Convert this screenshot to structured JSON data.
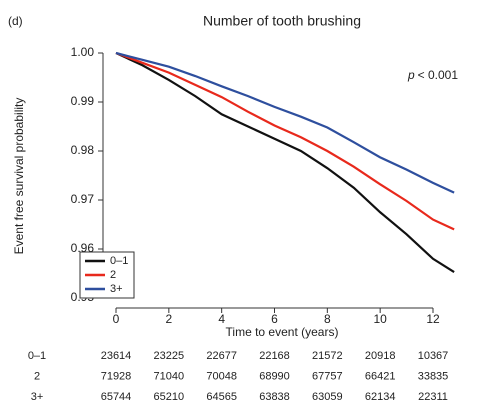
{
  "chart_data": {
    "type": "line",
    "panel_label": "(d)",
    "title": "Number of tooth brushing",
    "xlabel": "Time to event (years)",
    "ylabel": "Event free survival probability",
    "p_symbol": "p",
    "p_value": "< 0.001",
    "x": [
      0,
      1,
      2,
      3,
      4,
      5,
      6,
      7,
      8,
      9,
      10,
      11,
      12,
      12.8
    ],
    "series": [
      {
        "name": "0–1",
        "color": "#111111",
        "values": [
          1.0,
          0.9975,
          0.9945,
          0.9912,
          0.9875,
          0.985,
          0.9825,
          0.98,
          0.9765,
          0.9725,
          0.9675,
          0.963,
          0.958,
          0.9553
        ]
      },
      {
        "name": "2",
        "color": "#e8291c",
        "values": [
          1.0,
          0.998,
          0.996,
          0.9935,
          0.991,
          0.988,
          0.9852,
          0.9828,
          0.98,
          0.9768,
          0.9732,
          0.9698,
          0.966,
          0.964
        ]
      },
      {
        "name": "3+",
        "color": "#2e4f9e",
        "values": [
          1.0,
          0.9986,
          0.9972,
          0.9953,
          0.9932,
          0.9912,
          0.989,
          0.987,
          0.9848,
          0.9818,
          0.9787,
          0.9762,
          0.9735,
          0.9715
        ]
      }
    ],
    "xlim": [
      0,
      12
    ],
    "xticks": [
      0,
      2,
      4,
      6,
      8,
      10,
      12
    ],
    "ylim": [
      0.95,
      1.0
    ],
    "yticks": [
      0.95,
      0.96,
      0.97,
      0.98,
      0.99,
      {
        "value": 1.0,
        "label": "1.00"
      }
    ],
    "legend": "lower left",
    "risk_table": {
      "times": [
        0,
        2,
        4,
        6,
        8,
        10,
        12
      ],
      "rows": [
        {
          "label": "0–1",
          "values": [
            23614,
            23225,
            22677,
            22168,
            21572,
            20918,
            10367
          ]
        },
        {
          "label": "2",
          "values": [
            71928,
            71040,
            70048,
            68990,
            67757,
            66421,
            33835
          ]
        },
        {
          "label": "3+",
          "values": [
            65744,
            65210,
            64565,
            63838,
            63059,
            62134,
            22311
          ]
        }
      ]
    }
  }
}
